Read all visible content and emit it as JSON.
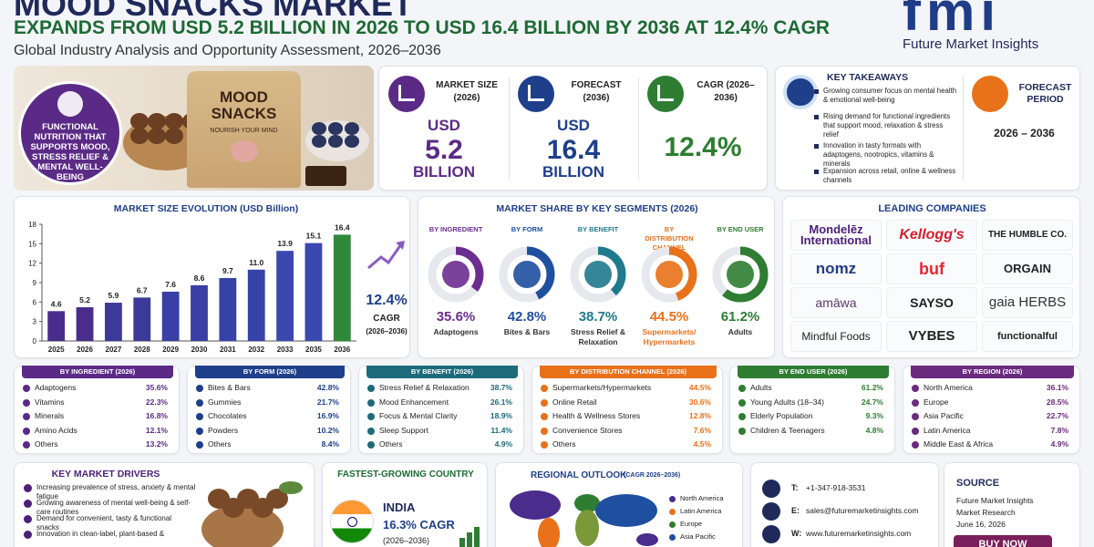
{
  "header": {
    "title": "MOOD SNACKS MARKET",
    "subtitle": "EXPANDS FROM USD 5.2 BILLION IN 2026 TO USD 16.4 BILLION BY 2036 AT 12.4% CAGR",
    "tagline": "Global Industry Analysis and Opportunity Assessment, 2026–2036",
    "logo": "fmi",
    "logo_text": "Future Market Insights"
  },
  "hero": {
    "package_title": "MOOD SNACKS",
    "package_subtitle": "NOURISH YOUR MIND",
    "badge": "FUNCTIONAL NUTRITION THAT SUPPORTS MOOD, STRESS RELIEF & MENTAL WELL-BEING"
  },
  "stats": [
    {
      "label": "MARKET SIZE (2026)",
      "lines": [
        "USD",
        "5.2",
        "BILLION"
      ],
      "color": "#5b2a86"
    },
    {
      "label": "FORECAST (2036)",
      "lines": [
        "USD",
        "16.4",
        "BILLION"
      ],
      "color": "#1e3f8a"
    },
    {
      "label": "CAGR (2026–2036)",
      "lines": [
        "12.4%"
      ],
      "color": "#2e7d32"
    }
  ],
  "key_takeaways": {
    "title": "KEY TAKEAWAYS",
    "items": [
      "Growing consumer focus on mental health & emotional well-being",
      "Rising demand for functional ingredients that support mood, relaxation & stress relief",
      "Innovation in tasty formats with adaptogens, nootropics, vitamins & minerals",
      "Expansion across retail, online & wellness channels"
    ]
  },
  "forecast_period": {
    "title": "FORECAST PERIOD",
    "value": "2026 – 2036"
  },
  "chart_data": {
    "type": "bar",
    "title": "MARKET SIZE EVOLUTION (USD Billion)",
    "categories": [
      "2025",
      "2026",
      "2027",
      "2028",
      "2029",
      "2030",
      "2031",
      "2032",
      "2033",
      "2035",
      "2036"
    ],
    "values": [
      4.6,
      5.2,
      5.9,
      6.7,
      7.6,
      8.6,
      9.7,
      11.0,
      13.9,
      15.1,
      16.4
    ],
    "value_labels": [
      "4.6",
      "5.2",
      "5.9",
      "6.7",
      "7.6",
      "8.6",
      "9.7",
      "11.0",
      "13.9",
      "15.1",
      "16.4"
    ],
    "colors": [
      "#4a2c8c",
      "#4a2c8c",
      "#3b3a9a",
      "#3b3a9a",
      "#3a3fa6",
      "#3a3fa6",
      "#3543a8",
      "#3543a8",
      "#3b48b0",
      "#3b48b0",
      "#2e8a3a"
    ],
    "ylim": [
      0,
      18
    ],
    "yticks": [
      0,
      3,
      6,
      9,
      12,
      15,
      18
    ],
    "grid": false,
    "cagr": "12.4%",
    "cagr_label": "CAGR",
    "cagr_period": "(2026–2036)"
  },
  "market_share": {
    "title": "MARKET SHARE BY KEY SEGMENTS (2026)",
    "segments": [
      {
        "label": "BY INGREDIENT",
        "value": 35.6,
        "value_label": "35.6%",
        "name": "Adaptogens",
        "color": "#6b2d8f"
      },
      {
        "label": "BY FORM",
        "value": 42.8,
        "value_label": "42.8%",
        "name": "Bites & Bars",
        "color": "#1e4fa0"
      },
      {
        "label": "BY BENEFIT",
        "value": 38.7,
        "value_label": "38.7%",
        "name": "Stress Relief & Relaxation",
        "color": "#1f7a8c"
      },
      {
        "label": "BY DISTRIBUTION CHANNEL",
        "value": 44.5,
        "value_label": "44.5%",
        "name": "Supermarkets/ Hypermarkets",
        "color": "#e8711a"
      },
      {
        "label": "BY END USER",
        "value": 61.2,
        "value_label": "61.2%",
        "name": "Adults",
        "color": "#2e7d32"
      }
    ]
  },
  "leading_companies": {
    "title": "LEADING COMPANIES",
    "names": [
      "Mondelēz International",
      "Kellogg's",
      "THE HUMBLE CO.",
      "nomz",
      "buf",
      "ORGAIN",
      "amāwa",
      "SAYSO",
      "gaia HERBS",
      "Mindful Foods",
      "VYBES",
      "functionalful"
    ]
  },
  "tables": [
    {
      "title": "BY INGREDIENT (2026)",
      "color": "#5b2a86",
      "rows": [
        [
          "Adaptogens",
          "35.6%"
        ],
        [
          "Vitamins",
          "22.3%"
        ],
        [
          "Minerals",
          "16.8%"
        ],
        [
          "Amino Acids",
          "12.1%"
        ],
        [
          "Others",
          "13.2%"
        ]
      ]
    },
    {
      "title": "BY FORM (2026)",
      "color": "#1e3f8a",
      "rows": [
        [
          "Bites & Bars",
          "42.8%"
        ],
        [
          "Gummies",
          "21.7%"
        ],
        [
          "Chocolates",
          "16.9%"
        ],
        [
          "Powders",
          "10.2%"
        ],
        [
          "Others",
          "8.4%"
        ]
      ]
    },
    {
      "title": "BY BENEFIT (2026)",
      "color": "#1d6a7a",
      "rows": [
        [
          "Stress Relief & Relaxation",
          "38.7%"
        ],
        [
          "Mood Enhancement",
          "26.1%"
        ],
        [
          "Focus & Mental Clarity",
          "18.9%"
        ],
        [
          "Sleep Support",
          "11.4%"
        ],
        [
          "Others",
          "4.9%"
        ]
      ]
    },
    {
      "title": "BY DISTRIBUTION CHANNEL (2026)",
      "color": "#e8711a",
      "rows": [
        [
          "Supermarkets/Hypermarkets",
          "44.5%"
        ],
        [
          "Online Retail",
          "30.6%"
        ],
        [
          "Health & Wellness Stores",
          "12.8%"
        ],
        [
          "Convenience Stores",
          "7.6%"
        ],
        [
          "Others",
          "4.5%"
        ]
      ]
    },
    {
      "title": "BY END USER (2026)",
      "color": "#2e7d32",
      "rows": [
        [
          "Adults",
          "61.2%"
        ],
        [
          "Young Adults (18–34)",
          "24.7%"
        ],
        [
          "Elderly Population",
          "9.3%"
        ],
        [
          "Children & Teenagers",
          "4.8%"
        ]
      ]
    },
    {
      "title": "BY REGION (2026)",
      "color": "#6a2a7e",
      "rows": [
        [
          "North America",
          "36.1%"
        ],
        [
          "Europe",
          "28.5%"
        ],
        [
          "Asia Pacific",
          "22.7%"
        ],
        [
          "Latin America",
          "7.8%"
        ],
        [
          "Middle East & Africa",
          "4.9%"
        ]
      ]
    }
  ],
  "drivers": {
    "title": "KEY MARKET DRIVERS",
    "items": [
      "Increasing prevalence of stress, anxiety & mental fatigue",
      "Growing awareness of mental well-being & self-care routines",
      "Demand for convenient, tasty & functional snacks",
      "Innovation in clean-label, plant-based &"
    ]
  },
  "fastest_growing": {
    "title": "FASTEST-GROWING COUNTRY",
    "country": "INDIA",
    "cagr": "16.3% CAGR",
    "period": "(2026–2036)"
  },
  "regional_outlook": {
    "title": "REGIONAL OUTLOOK",
    "subtitle": "(CAGR 2026–2036)",
    "legend": [
      {
        "name": "North America",
        "color": "#4a2c8c"
      },
      {
        "name": "Latin America",
        "color": "#e8711a"
      },
      {
        "name": "Europe",
        "color": "#2e7d32"
      },
      {
        "name": "Asia Pacific",
        "color": "#1e4fa0"
      }
    ]
  },
  "contact": {
    "items": [
      {
        "label": "T:",
        "value": "+1-347-918-3531"
      },
      {
        "label": "E:",
        "value": "sales@futuremarketinsights.com"
      },
      {
        "label": "W:",
        "value": "www.futuremarketinsights.com"
      }
    ]
  },
  "source": {
    "title": "SOURCE",
    "lines": [
      "Future Market Insights",
      "Market Research",
      "June 16, 2026"
    ],
    "button": "BUY NOW"
  }
}
